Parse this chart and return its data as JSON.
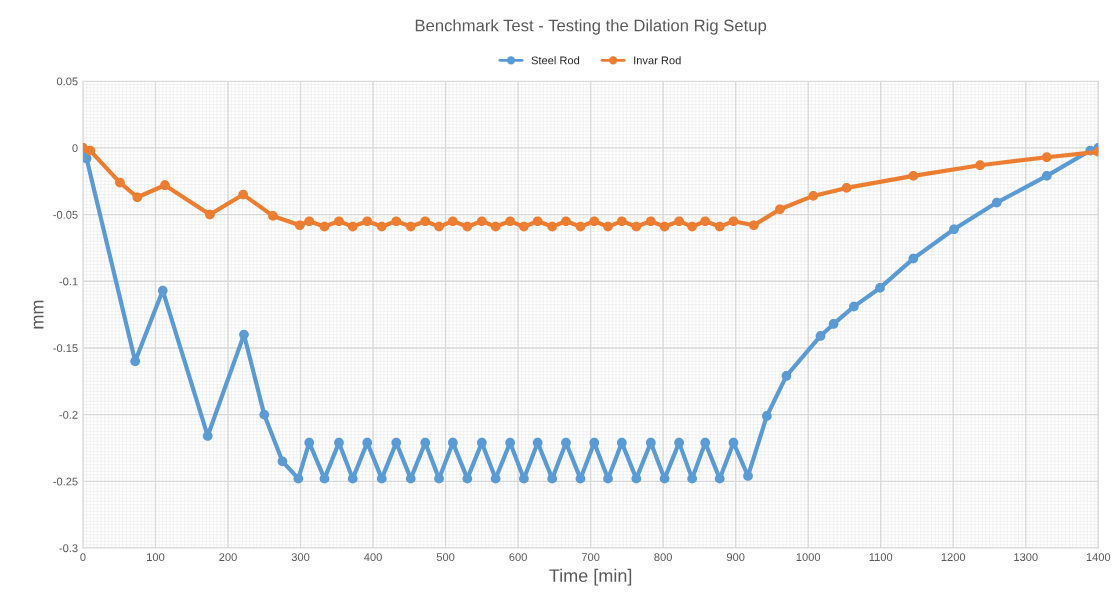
{
  "chart_data": {
    "type": "line",
    "title": "Benchmark Test - Testing the Dilation Rig Setup",
    "xlabel": "Time [min]",
    "ylabel": "mm",
    "xlim": [
      0,
      1400
    ],
    "xticks": [
      0,
      100,
      200,
      300,
      400,
      500,
      600,
      700,
      800,
      900,
      1000,
      1100,
      1200,
      1300,
      1400
    ],
    "ylim": [
      -0.3,
      0.05
    ],
    "yticks": [
      -0.3,
      -0.25,
      -0.2,
      -0.15,
      -0.1,
      -0.05,
      0,
      0.05
    ],
    "grid": true,
    "legend": "top",
    "marker": "circle",
    "line_style": "solid",
    "series": [
      {
        "name": "Steel Rod",
        "color": "#5b9bd5",
        "x": [
          0,
          5,
          72,
          110,
          172,
          222,
          250,
          275,
          297,
          312,
          333,
          353,
          372,
          392,
          412,
          432,
          452,
          472,
          491,
          510,
          530,
          550,
          569,
          589,
          608,
          627,
          647,
          666,
          686,
          705,
          724,
          743,
          763,
          783,
          802,
          822,
          840,
          858,
          878,
          897,
          917,
          943,
          970,
          1017,
          1035,
          1063,
          1099,
          1145,
          1201,
          1260,
          1329,
          1389,
          1400
        ],
        "values": [
          0,
          -0.008,
          -0.16,
          -0.107,
          -0.216,
          -0.14,
          -0.2,
          -0.235,
          -0.248,
          -0.221,
          -0.248,
          -0.221,
          -0.248,
          -0.221,
          -0.248,
          -0.221,
          -0.248,
          -0.221,
          -0.248,
          -0.221,
          -0.248,
          -0.221,
          -0.248,
          -0.221,
          -0.248,
          -0.221,
          -0.248,
          -0.221,
          -0.248,
          -0.221,
          -0.248,
          -0.221,
          -0.248,
          -0.221,
          -0.248,
          -0.221,
          -0.248,
          -0.221,
          -0.248,
          -0.221,
          -0.246,
          -0.201,
          -0.171,
          -0.141,
          -0.132,
          -0.119,
          -0.105,
          -0.083,
          -0.061,
          -0.041,
          -0.021,
          -0.002,
          0
        ]
      },
      {
        "name": "Invar Rod",
        "color": "#ed7d31",
        "x": [
          0,
          10,
          51,
          75,
          113,
          175,
          221,
          262,
          299,
          312,
          333,
          353,
          372,
          392,
          412,
          432,
          452,
          472,
          491,
          510,
          530,
          550,
          569,
          589,
          608,
          627,
          647,
          666,
          686,
          705,
          724,
          743,
          763,
          783,
          802,
          822,
          840,
          858,
          878,
          897,
          925,
          961,
          1007,
          1053,
          1145,
          1237,
          1329,
          1400
        ],
        "values": [
          0,
          -0.002,
          -0.026,
          -0.037,
          -0.028,
          -0.05,
          -0.035,
          -0.051,
          -0.058,
          -0.055,
          -0.059,
          -0.055,
          -0.059,
          -0.055,
          -0.059,
          -0.055,
          -0.059,
          -0.055,
          -0.059,
          -0.055,
          -0.059,
          -0.055,
          -0.059,
          -0.055,
          -0.059,
          -0.055,
          -0.059,
          -0.055,
          -0.059,
          -0.055,
          -0.059,
          -0.055,
          -0.059,
          -0.055,
          -0.059,
          -0.055,
          -0.059,
          -0.055,
          -0.059,
          -0.055,
          -0.058,
          -0.046,
          -0.036,
          -0.03,
          -0.021,
          -0.013,
          -0.007,
          -0.003
        ]
      }
    ]
  }
}
